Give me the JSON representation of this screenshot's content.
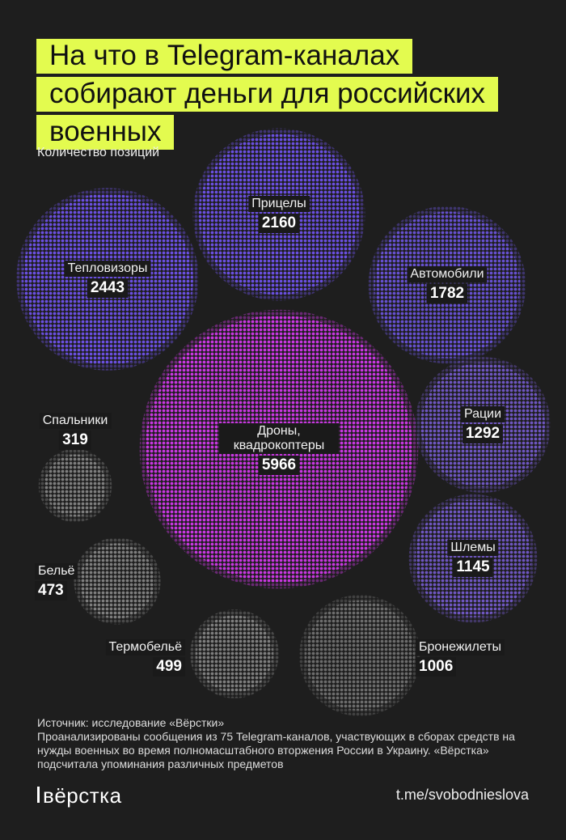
{
  "chart_data": {
    "type": "bubble",
    "title": "На что в Telegram-каналах собирают деньги для российских военных",
    "subtitle": "Количество позиций",
    "categories": [
      "Дроны, квадрокоптеры",
      "Тепловизоры",
      "Прицелы",
      "Автомобили",
      "Рации",
      "Шлемы",
      "Бронежилеты",
      "Термобельё",
      "Бельё",
      "Спальники"
    ],
    "values": [
      5966,
      2443,
      2160,
      1782,
      1292,
      1145,
      1006,
      499,
      473,
      319
    ],
    "colors": [
      "#c837e0",
      "#6a4fe0",
      "#6a4fe0",
      "#6650cf",
      "#6e56c0",
      "#6e56c0",
      "#6c6c6c",
      "#7e7e7e",
      "#7e7e7e",
      "#7e7e7e"
    ],
    "source": "Источник: исследование «Вёрстки»",
    "note": "Проанализированы сообщения из 75 Telegram-каналов, участвующих в сборах средств на нужды военных во время полномасштабного вторжения России в Украину. «Вёрстка» подсчитала упоминания различных предметов",
    "brand": "вёрстка",
    "link": "t.me/svobodnieslova"
  }
}
